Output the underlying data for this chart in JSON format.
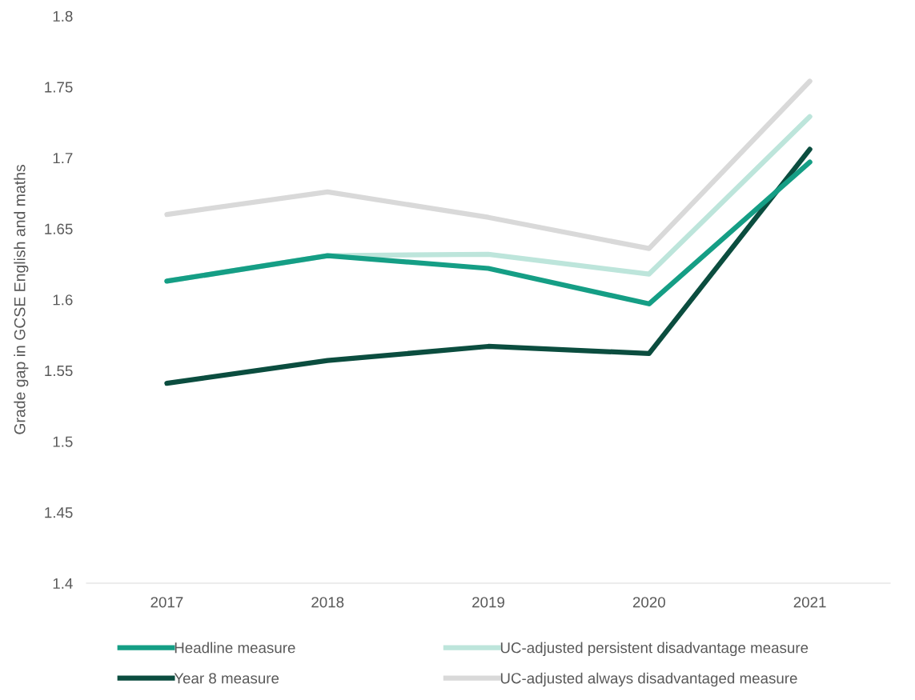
{
  "chart_data": {
    "type": "line",
    "ylabel": "Grade gap in GCSE English and maths",
    "categories": [
      "2017",
      "2018",
      "2019",
      "2020",
      "2021"
    ],
    "series": [
      {
        "name": "Headline measure",
        "color": "#159e85",
        "values": [
          1.613,
          1.631,
          1.622,
          1.597,
          1.697
        ]
      },
      {
        "name": "Year 8 measure",
        "color": "#0b4d3f",
        "values": [
          1.541,
          1.557,
          1.567,
          1.562,
          1.706
        ]
      },
      {
        "name": "UC-adjusted persistent disadvantage measure",
        "color": "#bde5db",
        "values": [
          1.613,
          1.631,
          1.632,
          1.618,
          1.729
        ]
      },
      {
        "name": "UC-adjusted always disadvantaged measure",
        "color": "#d9d9d9",
        "values": [
          1.66,
          1.676,
          1.658,
          1.636,
          1.754
        ]
      }
    ],
    "ylim": [
      1.4,
      1.8
    ],
    "yticks": [
      1.4,
      1.45,
      1.5,
      1.55,
      1.6,
      1.65,
      1.7,
      1.75,
      1.8
    ],
    "grid": false,
    "legend": "bottom",
    "marker": "none",
    "line_style": "solid"
  }
}
